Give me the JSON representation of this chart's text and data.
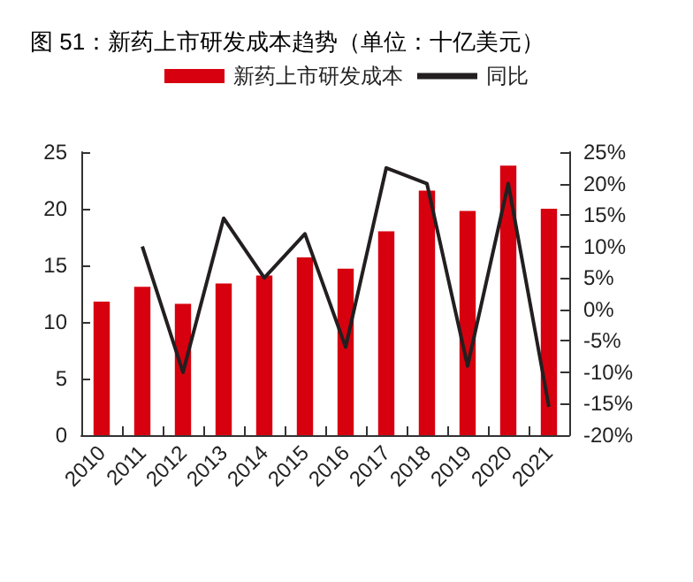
{
  "chart_data": {
    "type": "bar",
    "title": "图 51：新药上市研发成本趋势（单位：十亿美元）",
    "categories": [
      "2010",
      "2011",
      "2012",
      "2013",
      "2014",
      "2015",
      "2016",
      "2017",
      "2018",
      "2019",
      "2020",
      "2021"
    ],
    "series": [
      {
        "name": "新药上市研发成本",
        "color": "#d7000f",
        "values": [
          11.8,
          13.1,
          11.6,
          13.4,
          14.1,
          15.7,
          14.7,
          18.0,
          21.6,
          19.8,
          23.8,
          20.0
        ]
      },
      {
        "name": "同比",
        "type": "line",
        "axis": "y2",
        "color": "#231f20",
        "values": [
          null,
          10,
          -10,
          14.5,
          5,
          12,
          -6,
          22.5,
          20,
          -9,
          20,
          -15.5
        ]
      }
    ],
    "ylim": [
      0,
      25
    ],
    "yticks": [
      0,
      5,
      10,
      15,
      20,
      25
    ],
    "y2lim": [
      -20,
      25
    ],
    "y2ticks": [
      {
        "value": -20,
        "label": "-20%"
      },
      {
        "value": -15,
        "label": "-15%"
      },
      {
        "value": -10,
        "label": "-10%"
      },
      {
        "value": -5,
        "label": "-5%"
      },
      {
        "value": 0,
        "label": "0%"
      },
      {
        "value": 5,
        "label": "5%"
      },
      {
        "value": 10,
        "label": "10%"
      },
      {
        "value": 15,
        "label": "15%"
      },
      {
        "value": 20,
        "label": "20%"
      },
      {
        "value": 25,
        "label": "25%"
      }
    ],
    "legend": "top",
    "grid": false,
    "marker": "none",
    "line_style": "solid"
  }
}
